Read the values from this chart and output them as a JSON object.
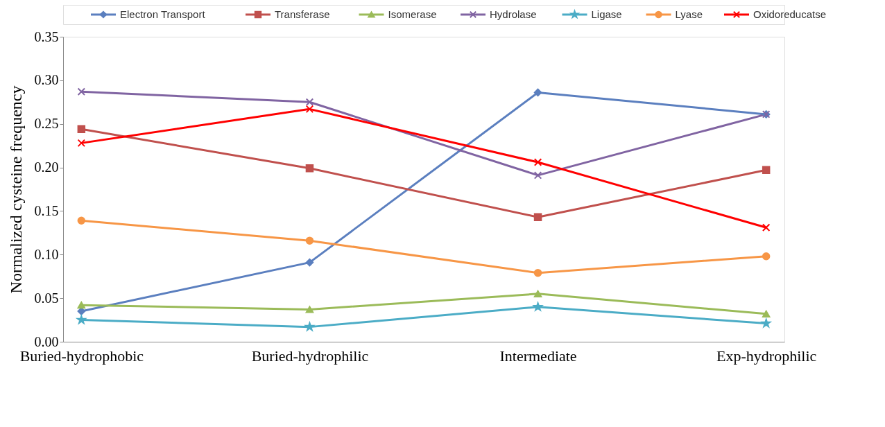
{
  "chart_data": {
    "type": "line",
    "ylabel": "Normalized  cysteine  frequency",
    "categories": [
      "Buried-hydrophobic",
      "Buried-hydrophilic",
      "Intermediate",
      "Exp-hydrophilic"
    ],
    "ylim": [
      0,
      0.35
    ],
    "yticks": [
      {
        "value": 0,
        "label": "0.00"
      },
      {
        "value": 0.05,
        "label": "0.05"
      },
      {
        "value": 0.1,
        "label": "0.10"
      },
      {
        "value": 0.15,
        "label": "0.15"
      },
      {
        "value": 0.2,
        "label": "0.20"
      },
      {
        "value": 0.25,
        "label": "0.25"
      },
      {
        "value": 0.3,
        "label": "0.30"
      },
      {
        "value": 0.35,
        "label": "0.35"
      }
    ],
    "grid": false,
    "legend": "top",
    "line_style": "solid",
    "series": [
      {
        "name": "Electron Transport",
        "color": "#5b7fbf",
        "marker": "diamond",
        "values": [
          0.035,
          0.091,
          0.286,
          0.261
        ]
      },
      {
        "name": "Transferase",
        "color": "#c0504d",
        "marker": "square",
        "values": [
          0.244,
          0.199,
          0.143,
          0.197
        ]
      },
      {
        "name": "Isomerase",
        "color": "#9bbb59",
        "marker": "triangle",
        "values": [
          0.042,
          0.037,
          0.055,
          0.032
        ]
      },
      {
        "name": "Hydrolase",
        "color": "#8064a2",
        "marker": "cross",
        "values": [
          0.287,
          0.275,
          0.191,
          0.261
        ]
      },
      {
        "name": "Ligase",
        "color": "#4bacc6",
        "marker": "star",
        "values": [
          0.025,
          0.017,
          0.04,
          0.021
        ]
      },
      {
        "name": "Lyase",
        "color": "#f79646",
        "marker": "circle",
        "values": [
          0.139,
          0.116,
          0.079,
          0.098
        ]
      },
      {
        "name": "Oxidoreducatse",
        "color": "#ff0000",
        "marker": "cross",
        "values": [
          0.228,
          0.267,
          0.206,
          0.131
        ]
      }
    ]
  }
}
